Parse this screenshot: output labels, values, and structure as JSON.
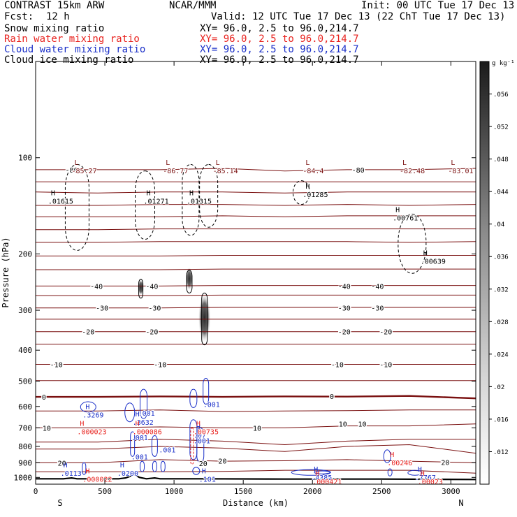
{
  "header": {
    "model": "CONTRAST 15km ARW",
    "org": "NCAR/MMM",
    "init": "Init: 00 UTC Tue 17 Dec 13",
    "fcst_label": "Fcst:",
    "fcst_value": "12 h",
    "valid": "Valid: 12 UTC Tue 17 Dec 13 (22 ChT Tue 17 Dec 13)",
    "fields": [
      {
        "name": "Snow mixing ratio",
        "xy": "XY=  96.0,  2.5 to  96.0,214.7",
        "color": "#000000"
      },
      {
        "name": "Rain water mixing ratio",
        "xy": "XY=  96.0,  2.5 to  96.0,214.7",
        "color": "#e8221e"
      },
      {
        "name": "Cloud water mixing ratio",
        "xy": "XY=  96.0,  2.5 to  96.0,214.7",
        "color": "#1a2fc8"
      },
      {
        "name": "Cloud ice mixing ratio",
        "xy": "XY=  96.0,  2.5 to  96.0,214.7",
        "color": "#000000"
      }
    ]
  },
  "chart_data": {
    "type": "cross-section",
    "xlabel": "Distance (km)",
    "ylabel": "Pressure (hPa)",
    "xlim": [
      0,
      3180
    ],
    "ylim": [
      1050,
      50
    ],
    "y_scale": "log",
    "x_ticks": [
      0,
      500,
      1000,
      1500,
      2000,
      2500,
      3000
    ],
    "y_ticks": [
      100,
      200,
      300,
      400,
      500,
      600,
      700,
      800,
      900,
      1000
    ],
    "x_end_labels": {
      "left": "S",
      "right": "N"
    },
    "colorbar": {
      "unit": "g kg⁻¹",
      "ticks": [
        ".056",
        ".052",
        ".048",
        ".044",
        ".04",
        ".036",
        ".032",
        ".028",
        ".024",
        ".02",
        ".016",
        ".012"
      ],
      "values": [
        0.056,
        0.052,
        0.048,
        0.044,
        0.04,
        0.036,
        0.032,
        0.028,
        0.024,
        0.02,
        0.016,
        0.012
      ],
      "range": [
        0.008,
        0.06
      ]
    },
    "temperature_contour_labels": [
      {
        "x": 260,
        "p": 109,
        "text": "-80"
      },
      {
        "x": 2330,
        "p": 109,
        "text": "-80"
      },
      {
        "x": 440,
        "p": 252,
        "text": "-40"
      },
      {
        "x": 840,
        "p": 252,
        "text": "-40"
      },
      {
        "x": 2230,
        "p": 252,
        "text": "-40"
      },
      {
        "x": 2470,
        "p": 252,
        "text": "-40"
      },
      {
        "x": 480,
        "p": 295,
        "text": "-30"
      },
      {
        "x": 860,
        "p": 295,
        "text": "-30"
      },
      {
        "x": 2230,
        "p": 295,
        "text": "-30"
      },
      {
        "x": 2470,
        "p": 295,
        "text": "-30"
      },
      {
        "x": 380,
        "p": 350,
        "text": "-20"
      },
      {
        "x": 840,
        "p": 350,
        "text": "-20"
      },
      {
        "x": 2230,
        "p": 350,
        "text": "-20"
      },
      {
        "x": 2530,
        "p": 350,
        "text": "-20"
      },
      {
        "x": 150,
        "p": 443,
        "text": "-10"
      },
      {
        "x": 900,
        "p": 443,
        "text": "-10"
      },
      {
        "x": 2180,
        "p": 443,
        "text": "-10"
      },
      {
        "x": 2530,
        "p": 443,
        "text": "-10"
      },
      {
        "x": 60,
        "p": 560,
        "text": "0"
      },
      {
        "x": 2140,
        "p": 557,
        "text": "0"
      },
      {
        "x": 80,
        "p": 700,
        "text": "10"
      },
      {
        "x": 1600,
        "p": 700,
        "text": "10"
      },
      {
        "x": 2220,
        "p": 680,
        "text": "10"
      },
      {
        "x": 2360,
        "p": 680,
        "text": "10"
      },
      {
        "x": 1350,
        "p": 887,
        "text": "20"
      },
      {
        "x": 2960,
        "p": 895,
        "text": "20"
      },
      {
        "x": 190,
        "p": 900,
        "text": "20"
      },
      {
        "x": 1210,
        "p": 903,
        "text": "20"
      }
    ],
    "temperature_lines": [
      {
        "value": "-80",
        "p": [
          109,
          109,
          109,
          108,
          110,
          109,
          109,
          108
        ],
        "bold": false
      },
      {
        "value": "",
        "p": [
          119,
          119,
          119,
          119,
          119,
          119,
          119,
          119
        ],
        "bold": false
      },
      {
        "value": "",
        "p": [
          128,
          129,
          128,
          128,
          129,
          128,
          128,
          128
        ],
        "bold": false
      },
      {
        "value": "",
        "p": [
          141,
          141,
          140,
          140,
          141,
          140,
          141,
          140
        ],
        "bold": false
      },
      {
        "value": "",
        "p": [
          153,
          153,
          153,
          152,
          153,
          152,
          152,
          152
        ],
        "bold": false
      },
      {
        "value": "",
        "p": [
          168,
          168,
          167,
          167,
          167,
          167,
          167,
          167
        ],
        "bold": false
      },
      {
        "value": "",
        "p": [
          184,
          184,
          183,
          183,
          183,
          183,
          184,
          183
        ],
        "bold": false
      },
      {
        "value": "",
        "p": [
          203,
          203,
          203,
          202,
          202,
          202,
          202,
          202
        ],
        "bold": false
      },
      {
        "value": "",
        "p": [
          224,
          224,
          224,
          223,
          223,
          223,
          223,
          223
        ],
        "bold": false
      },
      {
        "value": "-40",
        "p": [
          252,
          252,
          252,
          251,
          251,
          251,
          251,
          251
        ],
        "bold": false
      },
      {
        "value": "",
        "p": [
          270,
          270,
          270,
          269,
          269,
          269,
          269,
          269
        ],
        "bold": false
      },
      {
        "value": "-30",
        "p": [
          295,
          295,
          295,
          294,
          294,
          294,
          294,
          294
        ],
        "bold": false
      },
      {
        "value": "",
        "p": [
          320,
          320,
          320,
          320,
          320,
          320,
          320,
          320
        ],
        "bold": false
      },
      {
        "value": "-20",
        "p": [
          350,
          350,
          350,
          350,
          350,
          350,
          350,
          350
        ],
        "bold": false
      },
      {
        "value": "",
        "p": [
          383,
          383,
          383,
          383,
          383,
          383,
          383,
          383
        ],
        "bold": false
      },
      {
        "value": "-10",
        "p": [
          443,
          443,
          443,
          443,
          443,
          443,
          443,
          443
        ],
        "bold": false
      },
      {
        "value": "",
        "p": [
          498,
          498,
          498,
          498,
          498,
          498,
          498,
          498
        ],
        "bold": false
      },
      {
        "value": "0",
        "p": [
          560,
          560,
          558,
          560,
          558,
          559,
          556,
          566
        ],
        "bold": true
      },
      {
        "value": "",
        "p": [
          620,
          620,
          615,
          622,
          620,
          618,
          615,
          615
        ],
        "bold": false
      },
      {
        "value": "10",
        "p": [
          700,
          700,
          695,
          700,
          700,
          690,
          690,
          680
        ],
        "bold": false
      },
      {
        "value": "",
        "p": [
          775,
          775,
          760,
          770,
          790,
          770,
          760,
          760
        ],
        "bold": false
      },
      {
        "value": "",
        "p": [
          815,
          815,
          800,
          810,
          830,
          800,
          790,
          840
        ],
        "bold": false
      },
      {
        "value": "20",
        "p": [
          900,
          900,
          880,
          890,
          887,
          880,
          890,
          900
        ],
        "bold": false
      },
      {
        "value": "",
        "p": [
          960,
          960,
          960,
          958,
          950,
          950,
          950,
          970
        ],
        "bold": false
      }
    ],
    "temperature_line_x": [
      0,
      450,
      900,
      1350,
      1800,
      2250,
      2700,
      3180
    ],
    "max_labels": [
      {
        "x": 260,
        "p": 107,
        "letter": "L",
        "value": "-85.27",
        "color": "#7a1010"
      },
      {
        "x": 920,
        "p": 107,
        "letter": "L",
        "value": "-86.77",
        "color": "#7a1010"
      },
      {
        "x": 1280,
        "p": 107,
        "letter": "L",
        "value": "-85.14",
        "color": "#7a1010"
      },
      {
        "x": 1930,
        "p": 107,
        "letter": "L",
        "value": "-84.4",
        "color": "#7a1010"
      },
      {
        "x": 2630,
        "p": 107,
        "letter": "L",
        "value": "-82.48",
        "color": "#7a1010"
      },
      {
        "x": 2980,
        "p": 107,
        "letter": "L",
        "value": "-83.01",
        "color": "#7a1010"
      },
      {
        "x": 90,
        "p": 133,
        "letter": "H",
        "value": ".01615",
        "color": "#000000"
      },
      {
        "x": 780,
        "p": 133,
        "letter": "H",
        "value": ".01271",
        "color": "#000000"
      },
      {
        "x": 1090,
        "p": 133,
        "letter": "H",
        "value": ".01315",
        "color": "#000000"
      },
      {
        "x": 1930,
        "p": 127,
        "letter": "H",
        "value": ".01285",
        "color": "#000000"
      },
      {
        "x": 2580,
        "p": 150,
        "letter": "H",
        "value": ".00761",
        "color": "#000000"
      },
      {
        "x": 2780,
        "p": 205,
        "letter": "H",
        "value": ".00639",
        "color": "#000000"
      },
      {
        "x": 340,
        "p": 620,
        "letter": "H",
        "value": ".3269",
        "color": "#1a2fc8"
      },
      {
        "x": 700,
        "p": 655,
        "letter": "H",
        "value": ".3632",
        "color": "#1a2fc8"
      },
      {
        "x": 1210,
        "p": 575,
        "letter": "",
        "value": ".001",
        "color": "#1a2fc8"
      },
      {
        "x": 740,
        "p": 613,
        "letter": "",
        "value": ".001",
        "color": "#1a2fc8"
      },
      {
        "x": 690,
        "p": 730,
        "letter": "",
        "value": ".001",
        "color": "#1a2fc8"
      },
      {
        "x": 890,
        "p": 798,
        "letter": "",
        "value": ".001",
        "color": "#1a2fc8"
      },
      {
        "x": 690,
        "p": 840,
        "letter": "",
        "value": ".001",
        "color": "#1a2fc8"
      },
      {
        "x": 1140,
        "p": 748,
        "letter": "",
        "value": ".001",
        "color": "#1a2fc8"
      },
      {
        "x": 1140,
        "p": 718,
        "letter": "H",
        "value": ".07",
        "color": "#1a2fc8"
      },
      {
        "x": 180,
        "p": 945,
        "letter": "H",
        "value": ".0113",
        "color": "#1a2fc8"
      },
      {
        "x": 590,
        "p": 945,
        "letter": "H",
        "value": ".0200",
        "color": "#1a2fc8"
      },
      {
        "x": 1180,
        "p": 985,
        "letter": "H",
        "value": ".101",
        "color": "#1a2fc8"
      },
      {
        "x": 1990,
        "p": 973,
        "letter": "H",
        "value": ".4385",
        "color": "#1a2fc8"
      },
      {
        "x": 2740,
        "p": 973,
        "letter": "H",
        "value": ".7767",
        "color": "#1a2fc8"
      },
      {
        "x": 300,
        "p": 700,
        "letter": "H",
        "value": ".000023",
        "color": "#e8221e"
      },
      {
        "x": 700,
        "p": 700,
        "letter": "H",
        "value": ".000086",
        "color": "#e8221e"
      },
      {
        "x": 1140,
        "p": 700,
        "letter": "H",
        "value": ".00735",
        "color": "#e8221e"
      },
      {
        "x": 340,
        "p": 985,
        "letter": "H",
        "value": ".000022",
        "color": "#e8221e"
      },
      {
        "x": 2000,
        "p": 1003,
        "letter": "H",
        "value": ".000421",
        "color": "#e8221e"
      },
      {
        "x": 2540,
        "p": 875,
        "letter": "H",
        "value": ".00246",
        "color": "#e8221e"
      },
      {
        "x": 2760,
        "p": 1003,
        "letter": "H",
        "value": ".00023",
        "color": "#e8221e"
      }
    ],
    "terrain": {
      "x": [
        0,
        200,
        260,
        300,
        600,
        650,
        690,
        710,
        750,
        800,
        860,
        900,
        1200,
        1800,
        2500,
        3180
      ],
      "p": [
        1010,
        1010,
        1004,
        1010,
        1010,
        1004,
        990,
        978,
        1000,
        1010,
        1004,
        1010,
        1010,
        1012,
        1012,
        1015
      ]
    },
    "snow_shading": [
      {
        "x": 760,
        "p_top": 240,
        "p_bot": 270,
        "value": 0.016
      },
      {
        "x": 1110,
        "p_top": 220,
        "p_bot": 260,
        "value": 0.022
      },
      {
        "x": 1220,
        "p_top": 265,
        "p_bot": 380,
        "value": 0.058
      }
    ]
  }
}
